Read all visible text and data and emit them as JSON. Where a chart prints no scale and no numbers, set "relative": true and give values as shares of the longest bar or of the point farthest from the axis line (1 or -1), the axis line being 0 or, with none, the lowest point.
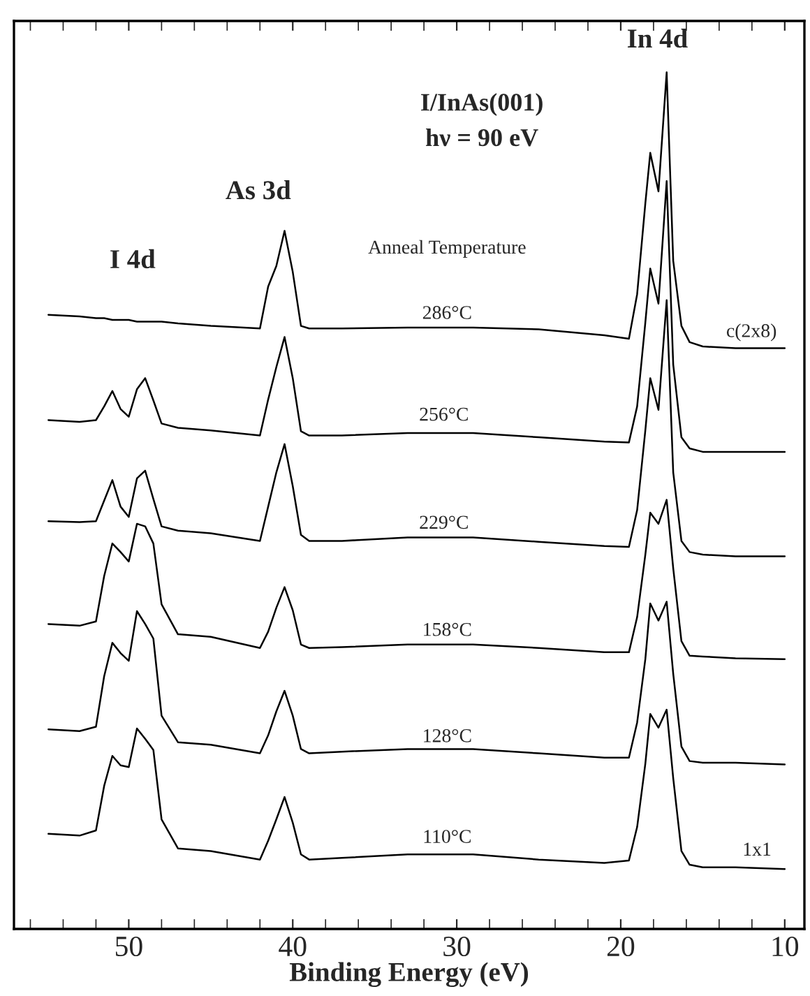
{
  "chart_data": {
    "type": "line",
    "title": "I/InAs(001)",
    "subtitle": "hν = 90 eV",
    "xlabel": "Binding Energy (eV)",
    "relative": true,
    "x": [
      54.9,
      53,
      52,
      51.5,
      51,
      50.5,
      50,
      49.5,
      49,
      48.5,
      48,
      47,
      45,
      42,
      41.5,
      41,
      40.5,
      40,
      39.5,
      39,
      37,
      33,
      29,
      25,
      21,
      19.5,
      19,
      18.5,
      18.2,
      17.7,
      17.2,
      16.8,
      16.3,
      15.8,
      15,
      13,
      10
    ],
    "xlim": [
      57,
      8.8
    ],
    "xticks": [
      {
        "value": 56,
        "label": null
      },
      {
        "value": 54,
        "label": null
      },
      {
        "value": 52,
        "label": null
      },
      50,
      {
        "value": 48,
        "label": null
      },
      {
        "value": 46,
        "label": null
      },
      {
        "value": 44,
        "label": null
      },
      {
        "value": 42,
        "label": null
      },
      40,
      {
        "value": 38,
        "label": null
      },
      {
        "value": 36,
        "label": null
      },
      {
        "value": 34,
        "label": null
      },
      {
        "value": 32,
        "label": null
      },
      30,
      {
        "value": 28,
        "label": null
      },
      {
        "value": 26,
        "label": null
      },
      {
        "value": 24,
        "label": null
      },
      {
        "value": 22,
        "label": null
      },
      20,
      {
        "value": 18,
        "label": null
      },
      {
        "value": 16,
        "label": null
      },
      {
        "value": 14,
        "label": null
      },
      {
        "value": 12,
        "label": null
      },
      10
    ],
    "series": [
      {
        "color": "#000000",
        "values": [
          0.717,
          0.715,
          0.713,
          0.713,
          0.711,
          0.711,
          0.711,
          0.709,
          0.709,
          0.709,
          0.709,
          0.707,
          0.704,
          0.701,
          0.75,
          0.774,
          0.815,
          0.767,
          0.704,
          0.701,
          0.701,
          0.702,
          0.702,
          0.7,
          0.693,
          0.689,
          0.741,
          0.847,
          0.906,
          0.861,
          1.0,
          0.78,
          0.704,
          0.685,
          0.68,
          0.678,
          0.678
        ]
      },
      {
        "color": "#000000",
        "values": [
          0.594,
          0.592,
          0.594,
          0.61,
          0.628,
          0.607,
          0.598,
          0.63,
          0.643,
          0.617,
          0.59,
          0.585,
          0.582,
          0.576,
          0.618,
          0.656,
          0.691,
          0.643,
          0.581,
          0.576,
          0.576,
          0.579,
          0.579,
          0.574,
          0.569,
          0.568,
          0.61,
          0.708,
          0.771,
          0.73,
          0.873,
          0.659,
          0.574,
          0.561,
          0.557,
          0.557,
          0.557
        ]
      },
      {
        "color": "#000000",
        "values": [
          0.476,
          0.475,
          0.476,
          0.5,
          0.524,
          0.493,
          0.481,
          0.526,
          0.535,
          0.502,
          0.47,
          0.465,
          0.462,
          0.453,
          0.493,
          0.533,
          0.566,
          0.517,
          0.46,
          0.453,
          0.453,
          0.457,
          0.457,
          0.452,
          0.447,
          0.446,
          0.489,
          0.582,
          0.643,
          0.606,
          0.734,
          0.533,
          0.453,
          0.44,
          0.437,
          0.435,
          0.435
        ]
      },
      {
        "color": "#000000",
        "values": [
          0.356,
          0.354,
          0.359,
          0.412,
          0.45,
          0.44,
          0.429,
          0.473,
          0.47,
          0.45,
          0.379,
          0.344,
          0.341,
          0.328,
          0.347,
          0.375,
          0.399,
          0.372,
          0.332,
          0.328,
          0.329,
          0.332,
          0.332,
          0.328,
          0.323,
          0.323,
          0.364,
          0.437,
          0.486,
          0.473,
          0.501,
          0.421,
          0.336,
          0.319,
          0.318,
          0.316,
          0.315
        ]
      },
      {
        "color": "#000000",
        "values": [
          0.233,
          0.231,
          0.236,
          0.295,
          0.334,
          0.322,
          0.313,
          0.371,
          0.356,
          0.339,
          0.249,
          0.218,
          0.215,
          0.205,
          0.226,
          0.254,
          0.278,
          0.249,
          0.21,
          0.205,
          0.207,
          0.21,
          0.21,
          0.205,
          0.2,
          0.2,
          0.241,
          0.315,
          0.38,
          0.36,
          0.382,
          0.298,
          0.213,
          0.196,
          0.194,
          0.194,
          0.192
        ]
      },
      {
        "color": "#000000",
        "values": [
          0.111,
          0.109,
          0.115,
          0.167,
          0.202,
          0.191,
          0.189,
          0.234,
          0.222,
          0.209,
          0.128,
          0.094,
          0.091,
          0.081,
          0.103,
          0.128,
          0.154,
          0.124,
          0.087,
          0.081,
          0.083,
          0.087,
          0.087,
          0.081,
          0.077,
          0.08,
          0.119,
          0.193,
          0.251,
          0.235,
          0.256,
          0.176,
          0.091,
          0.075,
          0.072,
          0.072,
          0.07
        ]
      }
    ],
    "annotations": [
      "I 4d",
      "As 3d",
      "In 4d",
      "Anneal Temperature",
      "286°C",
      "256°C",
      "229°C",
      "158°C",
      "128°C",
      "110°C",
      "c(2x8)",
      "1x1"
    ],
    "grid": false,
    "legend": false,
    "marker": "none",
    "line_style": "solid"
  }
}
